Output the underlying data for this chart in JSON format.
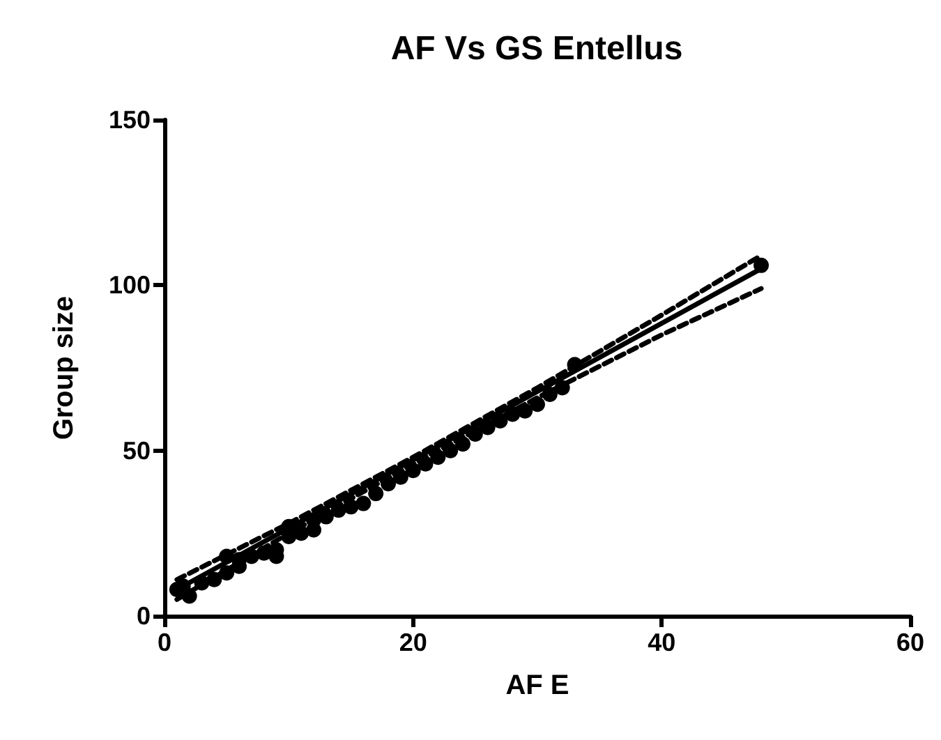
{
  "chart_data": {
    "type": "scatter",
    "title": "AF Vs GS Entellus",
    "xlabel": "AF E",
    "ylabel": "Group size",
    "xlim": [
      0,
      60
    ],
    "xticks": [
      0,
      20,
      40,
      60
    ],
    "ylim": [
      0,
      150
    ],
    "yticks": [
      0,
      50,
      100,
      150
    ],
    "grid": false,
    "series": [
      {
        "marker": "circle",
        "color": "#000000",
        "x": [
          1,
          1.5,
          2,
          3,
          4,
          5,
          5,
          6,
          6,
          7,
          8,
          9,
          9,
          10,
          10,
          11,
          12,
          12,
          13,
          14,
          15,
          16,
          17,
          18,
          19,
          20,
          21,
          22,
          23,
          24,
          25,
          26,
          27,
          28,
          29,
          30,
          31,
          32,
          33,
          48
        ],
        "values": [
          8,
          9,
          6,
          10,
          11,
          13,
          18,
          15,
          17,
          18,
          19,
          20,
          18,
          27,
          24,
          25,
          26,
          29,
          30,
          32,
          33,
          34,
          37,
          40,
          42,
          44,
          46,
          48,
          50,
          52,
          55,
          57,
          59,
          61,
          62,
          64,
          67,
          69,
          76,
          106
        ]
      },
      {
        "type": "line",
        "marker": "none",
        "color": "#000000",
        "line_style": "solid",
        "x": [
          1,
          48
        ],
        "values": [
          8,
          105
        ]
      },
      {
        "type": "line",
        "marker": "none",
        "color": "#000000",
        "line_style": "dashed",
        "x": [
          1,
          10,
          20,
          30,
          40,
          48
        ],
        "values": [
          11,
          28,
          48,
          69,
          91,
          109
        ]
      },
      {
        "type": "line",
        "marker": "none",
        "color": "#000000",
        "line_style": "dashed",
        "x": [
          1,
          10,
          20,
          30,
          40,
          48
        ],
        "values": [
          5,
          25,
          46,
          66,
          85,
          99
        ]
      }
    ]
  }
}
